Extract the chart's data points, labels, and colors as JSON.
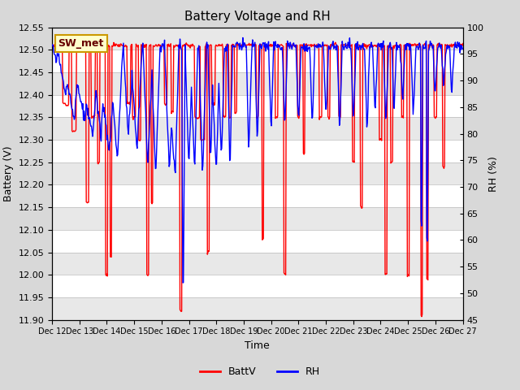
{
  "title": "Battery Voltage and RH",
  "xlabel": "Time",
  "ylabel_left": "Battery (V)",
  "ylabel_right": "RH (%)",
  "ylim_left": [
    11.9,
    12.55
  ],
  "ylim_right": [
    45,
    100
  ],
  "yticks_left": [
    11.9,
    11.95,
    12.0,
    12.05,
    12.1,
    12.15,
    12.2,
    12.25,
    12.3,
    12.35,
    12.4,
    12.45,
    12.5,
    12.55
  ],
  "yticks_right": [
    45,
    50,
    55,
    60,
    65,
    70,
    75,
    80,
    85,
    90,
    95,
    100
  ],
  "x_tick_labels": [
    "Dec 12",
    "Dec 13",
    "Dec 14",
    "Dec 15",
    "Dec 16",
    "Dec 17",
    "Dec 18",
    "Dec 19",
    "Dec 20",
    "Dec 21",
    "Dec 22",
    "Dec 23",
    "Dec 24",
    "Dec 25",
    "Dec 26",
    "Dec 27"
  ],
  "annotation_text": "SW_met",
  "annotation_bbox_facecolor": "#ffffcc",
  "annotation_bbox_edgecolor": "#cc9900",
  "batt_color": "#ff0000",
  "rh_color": "#0000ff",
  "batt_label": "BattV",
  "rh_label": "RH",
  "background_color": "#d8d8d8",
  "plot_bg_color": "#ffffff",
  "grid_color": "#cccccc",
  "alt_band_color": "#e8e8e8",
  "title_fontsize": 11,
  "axis_label_fontsize": 9,
  "tick_fontsize": 8,
  "legend_fontsize": 9,
  "line_width": 1.0
}
